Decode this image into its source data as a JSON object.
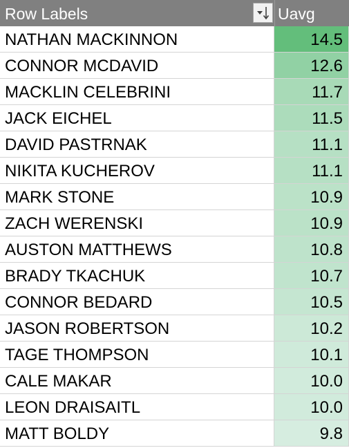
{
  "header": {
    "row_labels": "Row Labels",
    "value_label": "Uavg",
    "sort_icon": "sort-descending-icon"
  },
  "colors": {
    "header_bg": "#808080",
    "header_text": "#ffffff",
    "scale_high": "#63be7b",
    "scale_low": "#d6ede0"
  },
  "rows": [
    {
      "name": "NATHAN MACKINNON",
      "value": "14.5"
    },
    {
      "name": "CONNOR MCDAVID",
      "value": "12.6"
    },
    {
      "name": "MACKLIN CELEBRINI",
      "value": "11.7"
    },
    {
      "name": "JACK EICHEL",
      "value": "11.5"
    },
    {
      "name": "DAVID PASTRNAK",
      "value": "11.1"
    },
    {
      "name": "NIKITA KUCHEROV",
      "value": "11.1"
    },
    {
      "name": "MARK STONE",
      "value": "10.9"
    },
    {
      "name": "ZACH WERENSKI",
      "value": "10.9"
    },
    {
      "name": "AUSTON MATTHEWS",
      "value": "10.8"
    },
    {
      "name": "BRADY TKACHUK",
      "value": "10.7"
    },
    {
      "name": "CONNOR BEDARD",
      "value": "10.5"
    },
    {
      "name": "JASON ROBERTSON",
      "value": "10.2"
    },
    {
      "name": "TAGE THOMPSON",
      "value": "10.1"
    },
    {
      "name": "CALE MAKAR",
      "value": "10.0"
    },
    {
      "name": "LEON DRAISAITL",
      "value": "10.0"
    },
    {
      "name": "MATT BOLDY",
      "value": "9.8"
    }
  ]
}
